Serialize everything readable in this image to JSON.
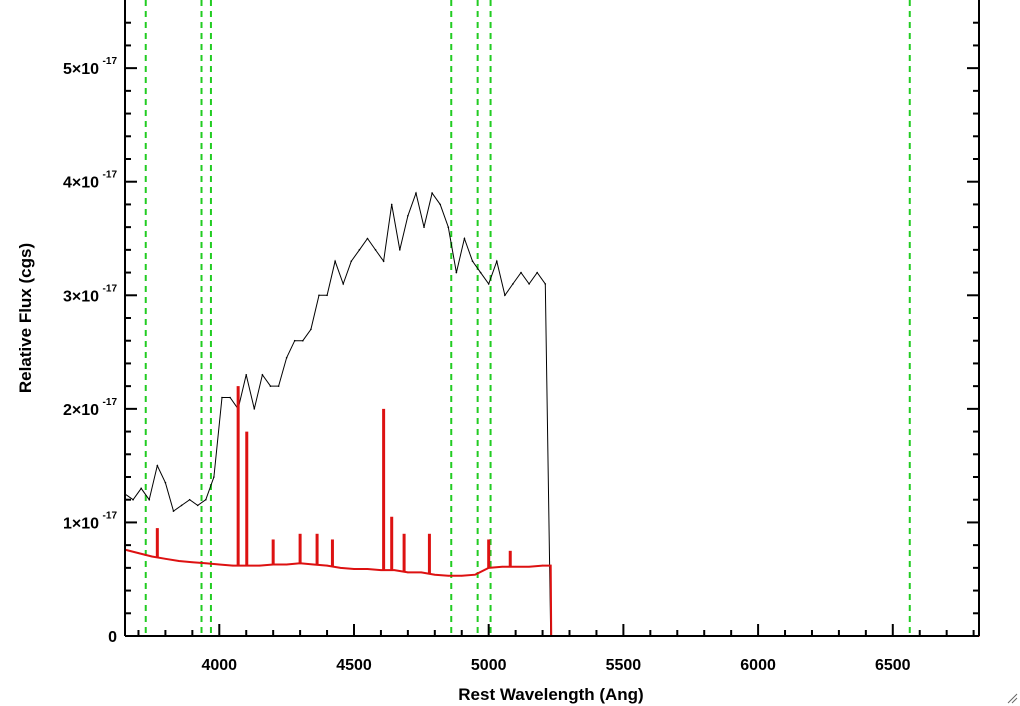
{
  "chart_data": {
    "type": "line",
    "xlabel": "Rest Wavelength (Ang)",
    "ylabel": "Relative Flux (cgs)",
    "xlim": [
      3650,
      6820
    ],
    "ylim": [
      0,
      5.6e-17
    ],
    "x_ticks": [
      4000,
      4500,
      5000,
      5500,
      6000,
      6500
    ],
    "x_tick_labels": [
      "4000",
      "4500",
      "5000",
      "5500",
      "6000",
      "6500"
    ],
    "y_ticks": [
      0,
      1e-17,
      2e-17,
      3e-17,
      4e-17,
      5e-17
    ],
    "y_tick_labels": [
      {
        "mantissa": "0",
        "exponent": ""
      },
      {
        "mantissa": "1×10",
        "exponent": "-17"
      },
      {
        "mantissa": "2×10",
        "exponent": "-17"
      },
      {
        "mantissa": "3×10",
        "exponent": "-17"
      },
      {
        "mantissa": "4×10",
        "exponent": "-17"
      },
      {
        "mantissa": "5×10",
        "exponent": "-17"
      }
    ],
    "vertical_lines": [
      3727,
      3934,
      3969,
      4861,
      4959,
      5007,
      6563
    ],
    "series": [
      {
        "color": "#000000",
        "x": [
          3650,
          3680,
          3710,
          3740,
          3770,
          3800,
          3830,
          3860,
          3890,
          3920,
          3950,
          3980,
          4010,
          4040,
          4070,
          4100,
          4130,
          4160,
          4190,
          4220,
          4250,
          4280,
          4310,
          4340,
          4370,
          4400,
          4430,
          4460,
          4490,
          4520,
          4550,
          4580,
          4610,
          4640,
          4670,
          4700,
          4730,
          4760,
          4790,
          4820,
          4850,
          4880,
          4910,
          4940,
          4970,
          5000,
          5030,
          5060,
          5090,
          5120,
          5150,
          5180,
          5210,
          5230
        ],
        "y": [
          1.25e-17,
          1.2e-17,
          1.3e-17,
          1.2e-17,
          1.5e-17,
          1.35e-17,
          1.1e-17,
          1.15e-17,
          1.2e-17,
          1.15e-17,
          1.2e-17,
          1.4e-17,
          2.1e-17,
          2.1e-17,
          2e-17,
          2.3e-17,
          2e-17,
          2.3e-17,
          2.2e-17,
          2.2e-17,
          2.45e-17,
          2.6e-17,
          2.6e-17,
          2.7e-17,
          3e-17,
          3e-17,
          3.3e-17,
          3.1e-17,
          3.3e-17,
          3.4e-17,
          3.5e-17,
          3.4e-17,
          3.3e-17,
          3.8e-17,
          3.4e-17,
          3.7e-17,
          3.9e-17,
          3.6e-17,
          3.9e-17,
          3.8e-17,
          3.6e-17,
          3.2e-17,
          3.5e-17,
          3.3e-17,
          3.2e-17,
          3.1e-17,
          3.3e-17,
          3e-17,
          3.1e-17,
          3.2e-17,
          3.1e-17,
          3.2e-17,
          3.1e-17,
          0
        ]
      },
      {
        "color": "#dd1111",
        "x": [
          3650,
          3700,
          3750,
          3800,
          3850,
          3900,
          3950,
          4000,
          4050,
          4100,
          4150,
          4200,
          4250,
          4300,
          4350,
          4400,
          4450,
          4500,
          4550,
          4600,
          4650,
          4700,
          4750,
          4800,
          4850,
          4900,
          4950,
          5000,
          5050,
          5100,
          5150,
          5200,
          5230,
          5232,
          6820
        ],
        "y": [
          7.6e-18,
          7.3e-18,
          7e-18,
          6.8e-18,
          6.6e-18,
          6.5e-18,
          6.4e-18,
          6.3e-18,
          6.2e-18,
          6.2e-18,
          6.2e-18,
          6.3e-18,
          6.3e-18,
          6.4e-18,
          6.3e-18,
          6.2e-18,
          6e-18,
          5.9e-18,
          5.9e-18,
          5.8e-18,
          5.8e-18,
          5.6e-18,
          5.6e-18,
          5.4e-18,
          5.3e-18,
          5.3e-18,
          5.4e-18,
          6e-18,
          6.1e-18,
          6.1e-18,
          6.1e-18,
          6.2e-18,
          6.2e-18,
          0,
          0
        ]
      }
    ],
    "emission_spikes": [
      {
        "x": 3770,
        "y": 9.5e-18
      },
      {
        "x": 4070,
        "y": 2.2e-17
      },
      {
        "x": 4102,
        "y": 1.8e-17
      },
      {
        "x": 4200,
        "y": 8.5e-18
      },
      {
        "x": 4300,
        "y": 9e-18
      },
      {
        "x": 4363,
        "y": 9e-18
      },
      {
        "x": 4420,
        "y": 8.5e-18
      },
      {
        "x": 4610,
        "y": 2e-17
      },
      {
        "x": 4640,
        "y": 1.05e-17
      },
      {
        "x": 4686,
        "y": 9e-18
      },
      {
        "x": 4780,
        "y": 9e-18
      },
      {
        "x": 5000,
        "y": 8.5e-18
      },
      {
        "x": 5080,
        "y": 7.5e-18
      }
    ],
    "colors": {
      "grid_marker": "#22cc22",
      "data": "#000000",
      "model": "#dd1111"
    }
  }
}
